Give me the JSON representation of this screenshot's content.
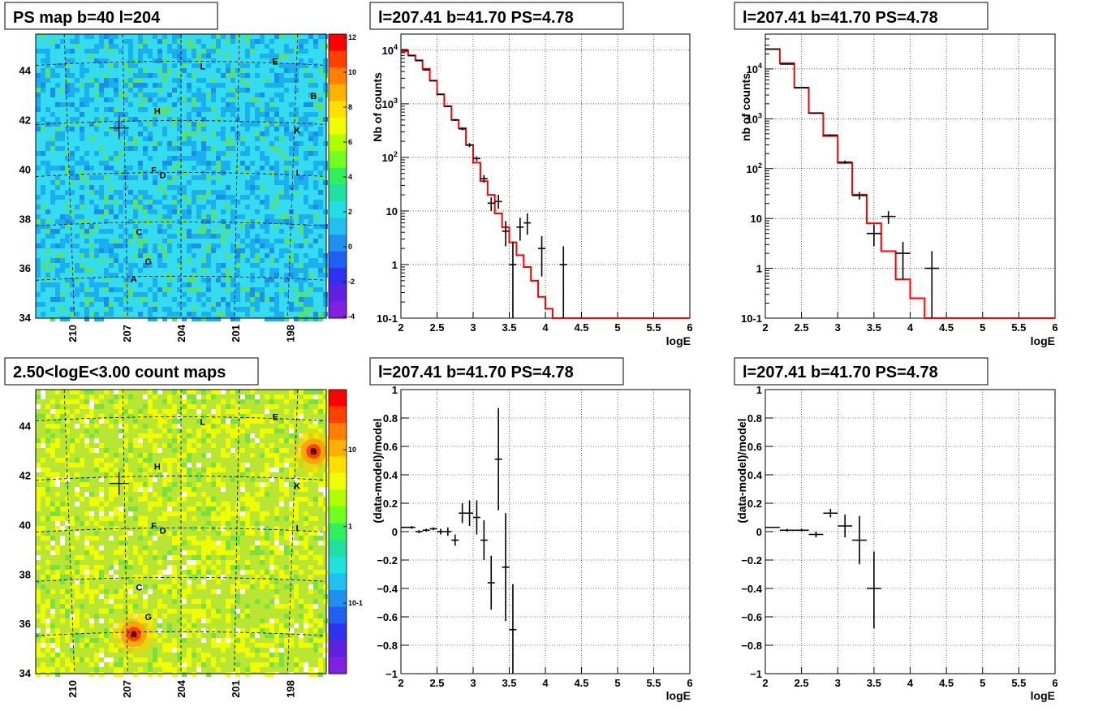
{
  "panels": {
    "map1": {
      "title": "PS map b=40 l=204",
      "yticks": [
        "44",
        "42",
        "40",
        "38",
        "36",
        "34"
      ],
      "xticks": [
        "210",
        "207",
        "204",
        "201",
        "198"
      ],
      "scale_ticks": [
        "12",
        "10",
        "8",
        "6",
        "4",
        "2",
        "0",
        "-2",
        "-4"
      ],
      "sources": [
        "L",
        "E",
        "B",
        "H",
        "K",
        "F",
        "D",
        "I",
        "C",
        "G",
        "A"
      ]
    },
    "map2": {
      "title": "2.50<logE<3.00 count maps",
      "yticks": [
        "44",
        "42",
        "40",
        "38",
        "36",
        "34"
      ],
      "xticks": [
        "210",
        "207",
        "204",
        "201",
        "198"
      ],
      "scale_ticks": [
        "10",
        "1",
        "10-1"
      ],
      "sources": [
        "L",
        "E",
        "B",
        "H",
        "K",
        "F",
        "D",
        "I",
        "C",
        "G",
        "A"
      ]
    },
    "spec1": {
      "title": "l=207.41 b=41.70 PS=4.78",
      "ylabel": "Nb of counts",
      "xlabel": "logE"
    },
    "spec2": {
      "title": "l=207.41 b=41.70 PS=4.78",
      "ylabel": "nb of counts",
      "xlabel": "logE"
    },
    "res1": {
      "title": "l=207.41 b=41.70 PS=4.78",
      "ylabel": "(data-model)/model",
      "xlabel": "logE"
    },
    "res2": {
      "title": "l=207.41 b=41.70 PS=4.78",
      "ylabel": "(data-model)/model",
      "xlabel": "logE"
    }
  },
  "colors": {
    "model_line": "#ff0000",
    "data": "#000000",
    "map1_bg": "#33e0f0",
    "map2_bg": "#b8e830"
  },
  "chart_data": [
    {
      "type": "heatmap",
      "title": "PS map b=40 l=204",
      "xlim": [
        212,
        196
      ],
      "ylim": [
        34,
        45.5
      ],
      "colorbar_range": [
        -5,
        12
      ],
      "sources": [
        {
          "name": "L",
          "l": 202.8,
          "b": 44.2
        },
        {
          "name": "E",
          "l": 198.8,
          "b": 44.4
        },
        {
          "name": "B",
          "l": 196.7,
          "b": 43.0
        },
        {
          "name": "H",
          "l": 205.3,
          "b": 42.4
        },
        {
          "name": "K",
          "l": 197.6,
          "b": 41.6
        },
        {
          "name": "F",
          "l": 205.5,
          "b": 40.0
        },
        {
          "name": "D",
          "l": 205.0,
          "b": 39.8
        },
        {
          "name": "I",
          "l": 197.6,
          "b": 39.9
        },
        {
          "name": "C",
          "l": 206.3,
          "b": 37.5
        },
        {
          "name": "G",
          "l": 205.8,
          "b": 36.3
        },
        {
          "name": "A",
          "l": 206.6,
          "b": 35.6
        }
      ],
      "marker": {
        "l": 207.41,
        "b": 41.7
      }
    },
    {
      "type": "heatmap",
      "title": "2.50<logE<3.00 count maps",
      "xlim": [
        212,
        196
      ],
      "ylim": [
        34,
        45.5
      ],
      "colorbar": "log",
      "hotspots": [
        {
          "name": "A",
          "l": 206.6,
          "b": 35.6
        },
        {
          "name": "B",
          "l": 196.7,
          "b": 43.0
        }
      ],
      "marker": {
        "l": 207.41,
        "b": 41.7
      }
    },
    {
      "type": "line",
      "title": "l=207.41 b=41.70 PS=4.78",
      "xlabel": "logE",
      "ylabel": "Nb of counts",
      "xlim": [
        2,
        6
      ],
      "ylim": [
        0.1,
        20000
      ],
      "yscale": "log",
      "model_edges": [
        2.0,
        2.1,
        2.2,
        2.3,
        2.4,
        2.5,
        2.6,
        2.7,
        2.8,
        2.9,
        3.0,
        3.1,
        3.2,
        3.3,
        3.4,
        3.5,
        3.6,
        3.7,
        3.8,
        3.9,
        4.0,
        4.1,
        6.0
      ],
      "model_values": [
        9500,
        8000,
        6500,
        4500,
        2700,
        1500,
        900,
        500,
        350,
        170,
        80,
        36,
        20,
        9,
        5,
        2.6,
        1.5,
        0.9,
        0.5,
        0.25,
        0.15,
        0.1
      ],
      "data": [
        {
          "x": 2.05,
          "y": 10200,
          "xerr": 0.05,
          "ylo": 10000,
          "yhi": 10400
        },
        {
          "x": 2.15,
          "y": 7900,
          "xerr": 0.05,
          "ylo": 7800,
          "yhi": 8100
        },
        {
          "x": 2.25,
          "y": 6400,
          "xerr": 0.05,
          "ylo": 6300,
          "yhi": 6500
        },
        {
          "x": 2.35,
          "y": 4300,
          "xerr": 0.05,
          "ylo": 4200,
          "yhi": 4400
        },
        {
          "x": 2.45,
          "y": 2700,
          "xerr": 0.05,
          "ylo": 2650,
          "yhi": 2750
        },
        {
          "x": 2.55,
          "y": 1500,
          "xerr": 0.05,
          "ylo": 1450,
          "yhi": 1550
        },
        {
          "x": 2.65,
          "y": 900,
          "xerr": 0.05,
          "ylo": 870,
          "yhi": 930
        },
        {
          "x": 2.75,
          "y": 500,
          "xerr": 0.05,
          "ylo": 480,
          "yhi": 520
        },
        {
          "x": 2.85,
          "y": 340,
          "xerr": 0.05,
          "ylo": 320,
          "yhi": 360
        },
        {
          "x": 2.95,
          "y": 170,
          "xerr": 0.05,
          "ylo": 155,
          "yhi": 185
        },
        {
          "x": 3.05,
          "y": 95,
          "xerr": 0.05,
          "ylo": 85,
          "yhi": 105
        },
        {
          "x": 3.15,
          "y": 40,
          "xerr": 0.05,
          "ylo": 34,
          "yhi": 47
        },
        {
          "x": 3.25,
          "y": 14,
          "xerr": 0.05,
          "ylo": 10,
          "yhi": 18
        },
        {
          "x": 3.35,
          "y": 15,
          "xerr": 0.05,
          "ylo": 11,
          "yhi": 20
        },
        {
          "x": 3.45,
          "y": 4.2,
          "xerr": 0.05,
          "ylo": 2.2,
          "yhi": 6.5
        },
        {
          "x": 3.55,
          "y": 1,
          "xerr": 0.05,
          "ylo": 0.1,
          "yhi": 2.7
        },
        {
          "x": 3.65,
          "y": 5,
          "xerr": 0.05,
          "ylo": 2.8,
          "yhi": 7.5
        },
        {
          "x": 3.75,
          "y": 6,
          "xerr": 0.05,
          "ylo": 3.6,
          "yhi": 9
        },
        {
          "x": 3.95,
          "y": 2,
          "xerr": 0.05,
          "ylo": 0.6,
          "yhi": 3.4
        },
        {
          "x": 4.25,
          "y": 1,
          "xerr": 0.05,
          "ylo": 0.1,
          "yhi": 2.2
        }
      ]
    },
    {
      "type": "line",
      "title": "l=207.41 b=41.70 PS=4.78",
      "xlabel": "logE",
      "ylabel": "nb of counts",
      "xlim": [
        2,
        6
      ],
      "ylim": [
        0.1,
        50000
      ],
      "yscale": "log",
      "model_edges": [
        2.0,
        2.2,
        2.4,
        2.6,
        2.8,
        3.0,
        3.2,
        3.4,
        3.6,
        3.8,
        4.0,
        4.2,
        6.0
      ],
      "model_values": [
        25000,
        13000,
        4200,
        1300,
        450,
        130,
        30,
        8,
        2.2,
        0.6,
        0.25,
        0.1
      ],
      "data": [
        {
          "x": 2.1,
          "y": 25000,
          "xerr": 0.1,
          "ylo": 24600,
          "yhi": 25400
        },
        {
          "x": 2.3,
          "y": 12500,
          "xerr": 0.1,
          "ylo": 12300,
          "yhi": 12700
        },
        {
          "x": 2.5,
          "y": 4200,
          "xerr": 0.1,
          "ylo": 4100,
          "yhi": 4300
        },
        {
          "x": 2.7,
          "y": 1300,
          "xerr": 0.1,
          "ylo": 1260,
          "yhi": 1340
        },
        {
          "x": 2.9,
          "y": 470,
          "xerr": 0.1,
          "ylo": 450,
          "yhi": 490
        },
        {
          "x": 3.1,
          "y": 135,
          "xerr": 0.1,
          "ylo": 125,
          "yhi": 145
        },
        {
          "x": 3.3,
          "y": 29,
          "xerr": 0.1,
          "ylo": 24,
          "yhi": 34
        },
        {
          "x": 3.5,
          "y": 5,
          "xerr": 0.1,
          "ylo": 2.8,
          "yhi": 7.5
        },
        {
          "x": 3.7,
          "y": 11,
          "xerr": 0.1,
          "ylo": 7.8,
          "yhi": 14
        },
        {
          "x": 3.9,
          "y": 2,
          "xerr": 0.1,
          "ylo": 0.6,
          "yhi": 3.4
        },
        {
          "x": 4.3,
          "y": 1,
          "xerr": 0.1,
          "ylo": 0.1,
          "yhi": 2.2
        }
      ]
    },
    {
      "type": "scatter",
      "title": "l=207.41 b=41.70 PS=4.78",
      "xlabel": "logE",
      "ylabel": "(data-model)/model",
      "xlim": [
        2,
        6
      ],
      "ylim": [
        -1,
        1
      ],
      "data": [
        {
          "x": 2.05,
          "y": 0.03,
          "xerr": 0.05,
          "ylo": 0.025,
          "yhi": 0.035
        },
        {
          "x": 2.15,
          "y": 0.03,
          "xerr": 0.05,
          "ylo": 0.02,
          "yhi": 0.04
        },
        {
          "x": 2.25,
          "y": 0.0,
          "xerr": 0.05,
          "ylo": -0.01,
          "yhi": 0.01
        },
        {
          "x": 2.35,
          "y": 0.01,
          "xerr": 0.05,
          "ylo": 0.0,
          "yhi": 0.02
        },
        {
          "x": 2.45,
          "y": 0.02,
          "xerr": 0.05,
          "ylo": 0.01,
          "yhi": 0.03
        },
        {
          "x": 2.55,
          "y": 0.0,
          "xerr": 0.05,
          "ylo": -0.02,
          "yhi": 0.02
        },
        {
          "x": 2.65,
          "y": 0.0,
          "xerr": 0.05,
          "ylo": -0.03,
          "yhi": 0.03
        },
        {
          "x": 2.75,
          "y": -0.06,
          "xerr": 0.05,
          "ylo": -0.1,
          "yhi": -0.02
        },
        {
          "x": 2.85,
          "y": 0.13,
          "xerr": 0.05,
          "ylo": 0.06,
          "yhi": 0.2
        },
        {
          "x": 2.95,
          "y": 0.13,
          "xerr": 0.05,
          "ylo": 0.04,
          "yhi": 0.22
        },
        {
          "x": 3.05,
          "y": 0.1,
          "xerr": 0.05,
          "ylo": -0.02,
          "yhi": 0.22
        },
        {
          "x": 3.15,
          "y": -0.06,
          "xerr": 0.05,
          "ylo": -0.2,
          "yhi": 0.08
        },
        {
          "x": 3.25,
          "y": -0.36,
          "xerr": 0.05,
          "ylo": -0.55,
          "yhi": -0.17
        },
        {
          "x": 3.35,
          "y": 0.51,
          "xerr": 0.05,
          "ylo": 0.15,
          "yhi": 0.87
        },
        {
          "x": 3.45,
          "y": -0.25,
          "xerr": 0.05,
          "ylo": -0.63,
          "yhi": 0.13
        },
        {
          "x": 3.55,
          "y": -0.69,
          "xerr": 0.05,
          "ylo": -1.0,
          "yhi": -0.37
        }
      ]
    },
    {
      "type": "scatter",
      "title": "l=207.41 b=41.70 PS=4.78",
      "xlabel": "logE",
      "ylabel": "(data-model)/model",
      "xlim": [
        2,
        6
      ],
      "ylim": [
        -1,
        1
      ],
      "data": [
        {
          "x": 2.1,
          "y": 0.03,
          "xerr": 0.1,
          "ylo": 0.025,
          "yhi": 0.035
        },
        {
          "x": 2.3,
          "y": 0.01,
          "xerr": 0.1,
          "ylo": 0.0,
          "yhi": 0.02
        },
        {
          "x": 2.5,
          "y": 0.01,
          "xerr": 0.1,
          "ylo": 0.0,
          "yhi": 0.02
        },
        {
          "x": 2.7,
          "y": -0.02,
          "xerr": 0.1,
          "ylo": -0.04,
          "yhi": 0.0
        },
        {
          "x": 2.9,
          "y": 0.13,
          "xerr": 0.1,
          "ylo": 0.1,
          "yhi": 0.16
        },
        {
          "x": 3.1,
          "y": 0.04,
          "xerr": 0.1,
          "ylo": -0.04,
          "yhi": 0.12
        },
        {
          "x": 3.3,
          "y": -0.06,
          "xerr": 0.1,
          "ylo": -0.23,
          "yhi": 0.11
        },
        {
          "x": 3.5,
          "y": -0.4,
          "xerr": 0.1,
          "ylo": -0.68,
          "yhi": -0.14
        }
      ]
    }
  ]
}
